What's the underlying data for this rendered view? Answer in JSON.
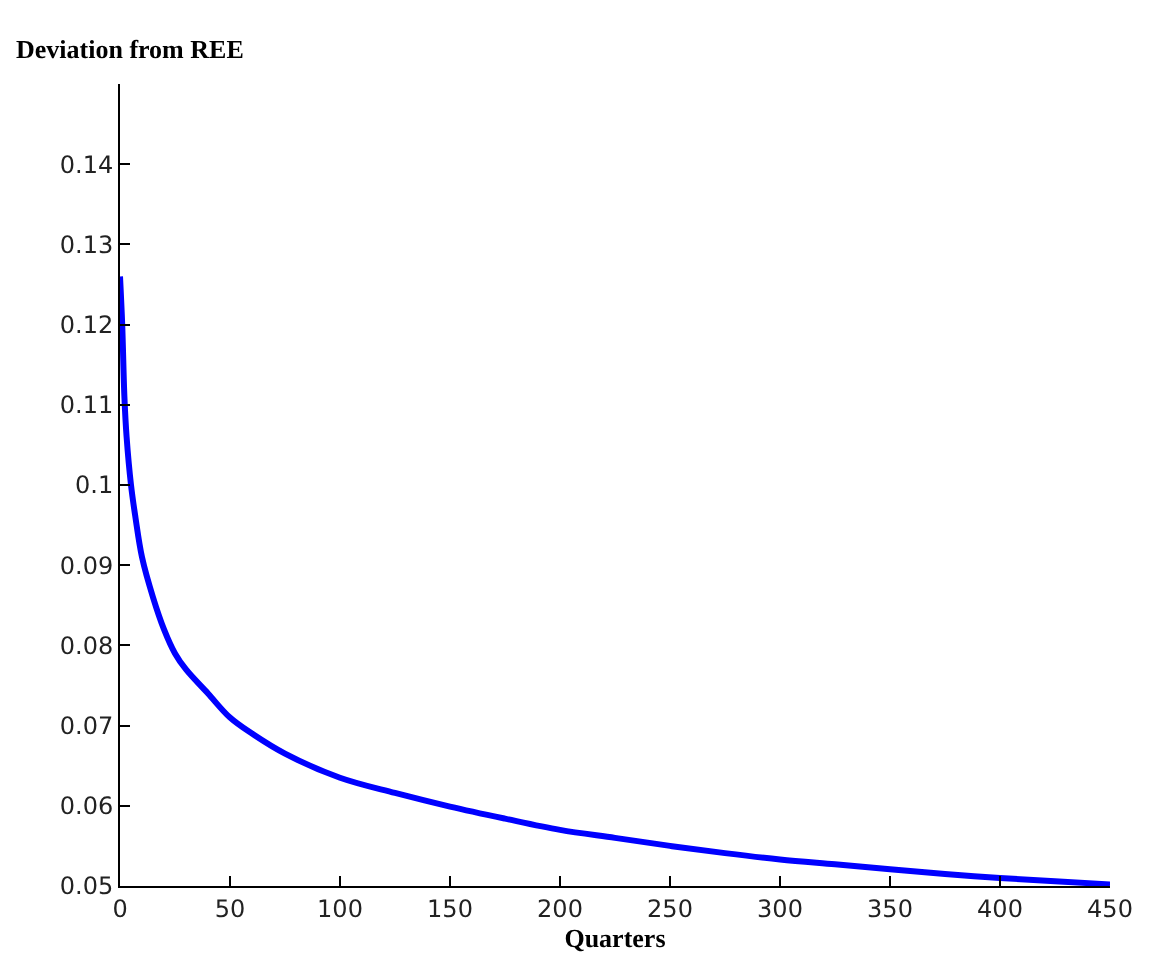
{
  "chart_data": {
    "type": "line",
    "ylabel": "Deviation from REE",
    "xlabel": "Quarters",
    "x": [
      0,
      1,
      2,
      3,
      5,
      7,
      10,
      15,
      20,
      25,
      30,
      40,
      50,
      60,
      75,
      100,
      125,
      150,
      175,
      200,
      225,
      250,
      275,
      300,
      325,
      350,
      375,
      400,
      425,
      450
    ],
    "series": [
      {
        "color": "#0000ff",
        "values": [
          0.126,
          0.12,
          0.111,
          0.106,
          0.1,
          0.096,
          0.091,
          0.086,
          0.082,
          0.079,
          0.077,
          0.074,
          0.071,
          0.069,
          0.0665,
          0.0635,
          0.0616,
          0.0599,
          0.0584,
          0.057,
          0.056,
          0.055,
          0.0541,
          0.0533,
          0.0527,
          0.0521,
          0.0515,
          0.051,
          0.0506,
          0.0502
        ]
      }
    ],
    "xlim": [
      0,
      450
    ],
    "xticks": [
      0,
      50,
      100,
      150,
      200,
      250,
      300,
      350,
      400,
      450
    ],
    "ylim": [
      0.05,
      0.15
    ],
    "yticks": [
      0.05,
      0.06,
      0.07,
      0.08,
      0.09,
      {
        "value": 0.1,
        "label": "0.1"
      },
      0.11,
      0.12,
      0.13,
      0.14
    ],
    "legend": false,
    "marker": "none",
    "line_style": "solid"
  }
}
